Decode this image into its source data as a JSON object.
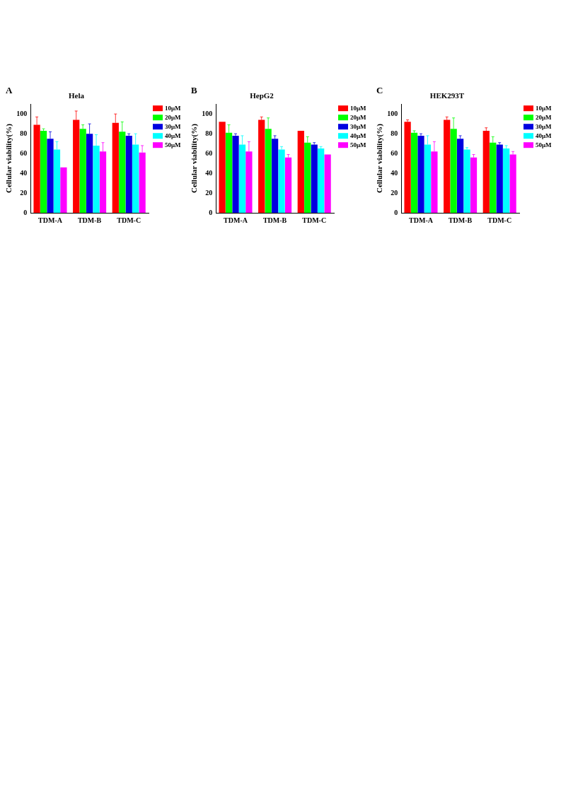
{
  "chart_data": [
    {
      "type": "bar",
      "title": "Hela",
      "ylabel": "Cellular viability(%)",
      "annotations": [
        "A"
      ],
      "categories": [
        "TDM-A",
        "TDM-B",
        "TDM-C"
      ],
      "ylim": [
        0,
        110
      ],
      "yticks": [
        0,
        20,
        40,
        60,
        80,
        100
      ],
      "grid": false,
      "legend": "right",
      "series": [
        {
          "name": "10μM",
          "color": "#ff0000",
          "values": [
            89,
            94,
            91
          ],
          "errors": [
            [
              89,
              97
            ],
            [
              94,
              103
            ],
            [
              91,
              100
            ]
          ]
        },
        {
          "name": "20μM",
          "color": "#00ff00",
          "values": [
            83,
            85,
            82
          ],
          "errors": [
            [
              83,
              85
            ],
            [
              85,
              89
            ],
            [
              82,
              92
            ]
          ]
        },
        {
          "name": "30μM",
          "color": "#0000e0",
          "values": [
            75,
            80,
            78
          ],
          "errors": [
            [
              75,
              82
            ],
            [
              80,
              90
            ],
            [
              78,
              80
            ]
          ]
        },
        {
          "name": "40μM",
          "color": "#00ffff",
          "values": [
            64,
            68,
            69
          ],
          "errors": [
            [
              64,
              72
            ],
            [
              68,
              79
            ],
            [
              69,
              80
            ]
          ]
        },
        {
          "name": "50μM",
          "color": "#ff00ff",
          "values": [
            46,
            62,
            61
          ],
          "errors": [
            null,
            [
              62,
              71
            ],
            [
              61,
              68
            ]
          ]
        }
      ]
    },
    {
      "type": "bar",
      "title": "HepG2",
      "ylabel": "Cellular viability(%)",
      "annotations": [
        "B"
      ],
      "categories": [
        "TDM-A",
        "TDM-B",
        "TDM-C"
      ],
      "ylim": [
        0,
        110
      ],
      "yticks": [
        0,
        20,
        40,
        60,
        80,
        100
      ],
      "grid": false,
      "legend": "right",
      "series": [
        {
          "name": "10μM",
          "color": "#ff0000",
          "values": [
            92,
            94,
            83
          ],
          "errors": [
            null,
            [
              94,
              97
            ],
            null
          ]
        },
        {
          "name": "20μM",
          "color": "#00ff00",
          "values": [
            81,
            85,
            71
          ],
          "errors": [
            [
              81,
              89
            ],
            [
              85,
              96
            ],
            [
              71,
              77
            ]
          ]
        },
        {
          "name": "30μM",
          "color": "#0000e0",
          "values": [
            78,
            75,
            69
          ],
          "errors": [
            [
              78,
              80
            ],
            [
              75,
              78
            ],
            [
              69,
              71
            ]
          ]
        },
        {
          "name": "40μM",
          "color": "#00ffff",
          "values": [
            69,
            64,
            65
          ],
          "errors": [
            [
              69,
              78
            ],
            [
              64,
              67
            ],
            [
              65,
              67
            ]
          ]
        },
        {
          "name": "50μM",
          "color": "#ff00ff",
          "values": [
            62,
            56,
            59
          ],
          "errors": [
            [
              62,
              72
            ],
            [
              56,
              59
            ],
            null
          ]
        }
      ]
    },
    {
      "type": "bar",
      "title": "HEK293T",
      "ylabel": "Cellular viability(%)",
      "annotations": [
        "C"
      ],
      "categories": [
        "TDM-A",
        "TDM-B",
        "TDM-C"
      ],
      "ylim": [
        0,
        110
      ],
      "yticks": [
        0,
        20,
        40,
        60,
        80,
        100
      ],
      "grid": false,
      "legend": "right",
      "series": [
        {
          "name": "10μM",
          "color": "#ff0000",
          "values": [
            92,
            94,
            83
          ],
          "errors": [
            [
              92,
              94
            ],
            [
              94,
              97
            ],
            [
              83,
              86
            ]
          ]
        },
        {
          "name": "20μM",
          "color": "#00ff00",
          "values": [
            81,
            85,
            71
          ],
          "errors": [
            [
              81,
              83
            ],
            [
              85,
              96
            ],
            [
              71,
              77
            ]
          ]
        },
        {
          "name": "30μM",
          "color": "#0000e0",
          "values": [
            78,
            75,
            69
          ],
          "errors": [
            [
              78,
              80
            ],
            [
              75,
              78
            ],
            [
              69,
              71
            ]
          ]
        },
        {
          "name": "40μM",
          "color": "#00ffff",
          "values": [
            69,
            64,
            65
          ],
          "errors": [
            [
              69,
              78
            ],
            [
              64,
              66
            ],
            [
              65,
              68
            ]
          ]
        },
        {
          "name": "50μM",
          "color": "#ff00ff",
          "values": [
            62,
            56,
            59
          ],
          "errors": [
            [
              62,
              72
            ],
            [
              56,
              59
            ],
            [
              59,
              62
            ]
          ]
        }
      ]
    }
  ]
}
